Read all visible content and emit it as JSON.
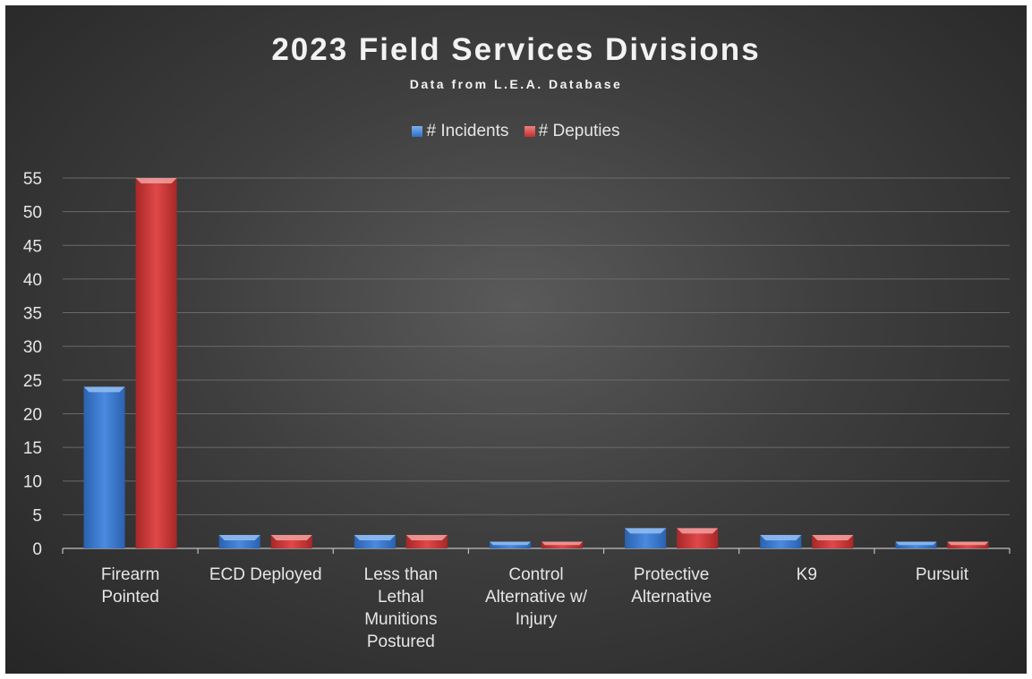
{
  "chart_data": {
    "type": "bar",
    "title": "2023 Field Services Divisions",
    "subtitle": "Data from L.E.A. Database",
    "categories": [
      [
        "Firearm",
        "Pointed"
      ],
      [
        "ECD Deployed"
      ],
      [
        "Less than",
        "Lethal",
        "Munitions",
        "Postured"
      ],
      [
        "Control",
        "Alternative w/",
        "Injury"
      ],
      [
        "Protective",
        "Alternative"
      ],
      [
        "K9"
      ],
      [
        "Pursuit"
      ]
    ],
    "series": [
      {
        "name": "# Incidents",
        "color": "#3f7fd6",
        "values": [
          24,
          2,
          2,
          1,
          3,
          2,
          1
        ]
      },
      {
        "name": "# Deputies",
        "color": "#d63a3a",
        "values": [
          55,
          2,
          2,
          1,
          3,
          2,
          1
        ]
      }
    ],
    "ylim": [
      0,
      55
    ],
    "yticks": [
      0,
      5,
      10,
      15,
      20,
      25,
      30,
      35,
      40,
      45,
      50,
      55
    ],
    "grid": true,
    "legend": "top-center"
  }
}
